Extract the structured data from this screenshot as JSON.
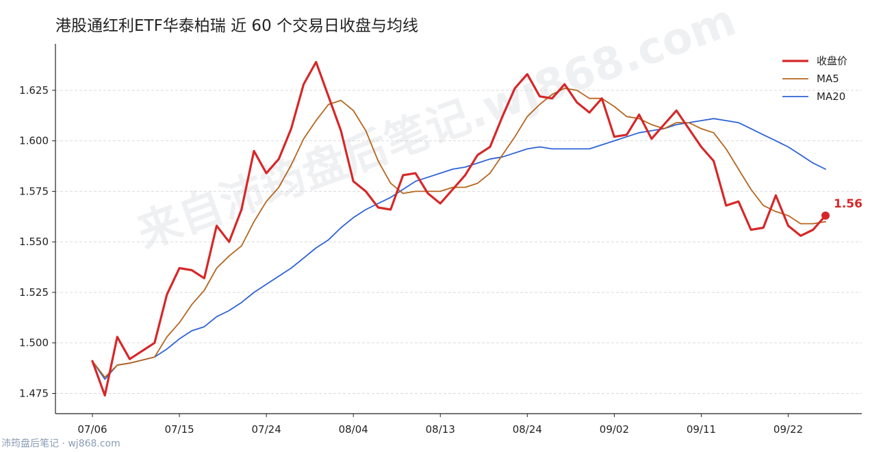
{
  "title": "港股通红利ETF华泰柏瑞 近 60 个交易日收盘与均线",
  "watermark_text": "来自沛筠盘后笔记.wj868.com",
  "footer_text": "沛筠盘后笔记 · wj868.com",
  "chart_data": {
    "type": "line",
    "title": "港股通红利ETF华泰柏瑞 近 60 个交易日收盘与均线",
    "xlabel": "",
    "ylabel": "",
    "ylim": [
      1.465,
      1.648
    ],
    "yticks": [
      1.475,
      1.5,
      1.525,
      1.55,
      1.575,
      1.6,
      1.625
    ],
    "ytick_labels": [
      "1.475",
      "1.500",
      "1.525",
      "1.550",
      "1.575",
      "1.600",
      "1.625"
    ],
    "x": [
      "07/06",
      "07/07",
      "07/08",
      "07/09",
      "07/12",
      "07/13",
      "07/14",
      "07/15",
      "07/16",
      "07/17",
      "07/20",
      "07/21",
      "07/22",
      "07/23",
      "07/24",
      "07/27",
      "07/28",
      "07/29",
      "07/30",
      "07/31",
      "08/03",
      "08/04",
      "08/05",
      "08/06",
      "08/07",
      "08/10",
      "08/11",
      "08/12",
      "08/13",
      "08/14",
      "08/17",
      "08/18",
      "08/19",
      "08/20",
      "08/21",
      "08/24",
      "08/25",
      "08/26",
      "08/27",
      "08/28",
      "08/31",
      "09/01",
      "09/02",
      "09/03",
      "09/04",
      "09/07",
      "09/08",
      "09/09",
      "09/10",
      "09/11",
      "09/14",
      "09/15",
      "09/16",
      "09/17",
      "09/18",
      "09/21",
      "09/22",
      "09/23",
      "09/24",
      "09/25"
    ],
    "xticks": [
      "07/06",
      "07/15",
      "07/24",
      "08/04",
      "08/13",
      "08/24",
      "09/02",
      "09/11",
      "09/22"
    ],
    "xtick_labels": [
      "07/06",
      "07/15",
      "07/24",
      "08/04",
      "08/13",
      "08/24",
      "09/02",
      "09/11",
      "09/22"
    ],
    "series": [
      {
        "name": "收盘价",
        "color": "#d62728",
        "values": [
          1.491,
          1.474,
          1.503,
          1.492,
          null,
          1.5,
          1.524,
          1.537,
          1.536,
          1.532,
          1.558,
          1.55,
          1.566,
          1.595,
          1.584,
          1.591,
          1.606,
          1.628,
          1.639,
          1.622,
          1.605,
          1.58,
          1.575,
          1.567,
          1.566,
          1.583,
          1.584,
          1.574,
          1.569,
          1.576,
          1.583,
          1.593,
          1.597,
          1.612,
          1.626,
          1.633,
          1.622,
          1.621,
          1.628,
          1.619,
          1.614,
          1.621,
          1.602,
          1.603,
          1.613,
          1.601,
          1.608,
          1.615,
          1.606,
          1.597,
          1.59,
          1.568,
          1.57,
          1.556,
          1.557,
          1.573,
          1.558,
          1.553,
          1.556,
          1.563
        ]
      },
      {
        "name": "MA5",
        "color": "#b5651d",
        "values": [
          1.491,
          1.483,
          1.489,
          1.49,
          null,
          1.493,
          1.503,
          1.51,
          1.519,
          1.526,
          1.537,
          1.543,
          1.548,
          1.56,
          1.57,
          1.577,
          1.588,
          1.601,
          1.61,
          1.618,
          1.62,
          1.615,
          1.605,
          1.59,
          1.579,
          1.574,
          1.575,
          1.575,
          1.575,
          1.577,
          1.577,
          1.579,
          1.584,
          1.593,
          1.602,
          1.612,
          1.618,
          1.623,
          1.626,
          1.625,
          1.621,
          1.621,
          1.617,
          1.612,
          1.611,
          1.608,
          1.606,
          1.609,
          1.609,
          1.606,
          1.604,
          1.596,
          1.586,
          1.576,
          1.568,
          1.565,
          1.563,
          1.559,
          1.559,
          1.56
        ]
      },
      {
        "name": "MA20",
        "color": "#2c62d6",
        "values": [
          1.491,
          1.482,
          1.489,
          1.49,
          null,
          1.493,
          1.497,
          1.502,
          1.506,
          1.508,
          1.513,
          1.516,
          1.52,
          1.525,
          1.529,
          1.533,
          1.537,
          1.542,
          1.547,
          1.551,
          1.557,
          1.562,
          1.566,
          1.569,
          1.572,
          1.576,
          1.58,
          1.582,
          1.584,
          1.586,
          1.587,
          1.589,
          1.591,
          1.592,
          1.594,
          1.596,
          1.597,
          1.596,
          1.596,
          1.596,
          1.596,
          1.598,
          1.6,
          1.602,
          1.604,
          1.605,
          1.606,
          1.608,
          1.609,
          1.61,
          1.611,
          1.61,
          1.609,
          1.606,
          1.603,
          1.6,
          1.597,
          1.593,
          1.589,
          1.586
        ]
      }
    ],
    "last_value_label": "1.56",
    "grid": "y",
    "legend": "top-right"
  }
}
